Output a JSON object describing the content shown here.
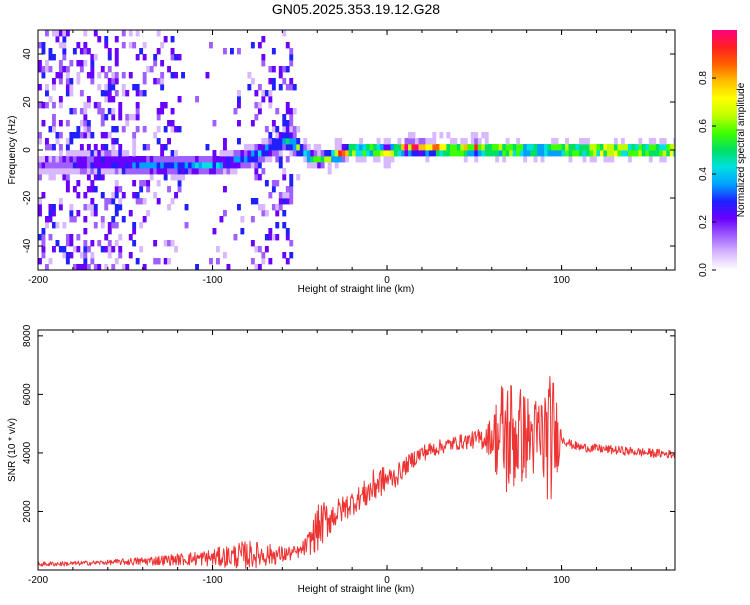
{
  "title": "GN05.2025.353.19.12.G28",
  "chart_data": [
    {
      "type": "heatmap",
      "xlabel": "Height of straight line (km)",
      "ylabel": "Frequency (Hz)",
      "xlim": [
        -200,
        165
      ],
      "ylim": [
        -50,
        50
      ],
      "xticks": [
        -200,
        -100,
        0,
        100
      ],
      "yticks": [
        -40,
        -20,
        0,
        20,
        40
      ],
      "colorbar": {
        "label": "Normalized spectral amplitude",
        "range": [
          0,
          1
        ],
        "ticks": [
          "0.0",
          "0.2",
          "0.4",
          "0.6",
          "0.8"
        ],
        "colormap": [
          "#ffffff",
          "#d8b8ff",
          "#a060ff",
          "#6a00ff",
          "#2020ff",
          "#00a0ff",
          "#00e0e0",
          "#00e060",
          "#40ff00",
          "#c0ff00",
          "#ffff00",
          "#ffc000",
          "#ff6000",
          "#ff2020",
          "#ff0080"
        ]
      },
      "ridge": {
        "x": [
          -200,
          -180,
          -160,
          -140,
          -120,
          -100,
          -90,
          -80,
          -70,
          -60,
          -55,
          -50,
          -45,
          -40,
          -30,
          -20,
          -10,
          0,
          10,
          20,
          40,
          50,
          60,
          70,
          80,
          90,
          95,
          100,
          110,
          120,
          140,
          165
        ],
        "freq": [
          -6,
          -5,
          -5,
          -6,
          -7,
          -6,
          -5,
          -3,
          0,
          4,
          3,
          0,
          -3,
          -4,
          -2,
          0,
          0,
          -1,
          1,
          1,
          0,
          1,
          0,
          0,
          0,
          0,
          1,
          0,
          0,
          0,
          0,
          0
        ],
        "peak_amplitude": [
          0.15,
          0.2,
          0.3,
          0.35,
          0.35,
          0.35,
          0.35,
          0.35,
          0.4,
          0.45,
          0.5,
          0.55,
          0.55,
          0.6,
          0.8,
          0.9,
          0.75,
          0.7,
          0.9,
          0.95,
          0.9,
          0.85,
          0.8,
          0.85,
          0.7,
          0.7,
          0.8,
          0.9,
          0.85,
          0.95,
          0.95,
          0.9
        ]
      }
    },
    {
      "type": "line",
      "xlabel": "Height of straight line (km)",
      "ylabel": "SNR (10 * v/v)",
      "xlim": [
        -200,
        165
      ],
      "ylim": [
        0,
        8200
      ],
      "xticks": [
        -200,
        -100,
        0,
        100
      ],
      "yticks": [
        2000,
        4000,
        6000,
        8000
      ],
      "series": [
        {
          "name": "SNR",
          "color": "#ee3333",
          "x": [
            -200,
            -180,
            -160,
            -140,
            -120,
            -100,
            -80,
            -60,
            -50,
            -45,
            -40,
            -35,
            -30,
            -25,
            -20,
            -15,
            -10,
            -5,
            0,
            5,
            10,
            15,
            20,
            30,
            40,
            50,
            55,
            60,
            65,
            70,
            75,
            80,
            85,
            90,
            95,
            100,
            105,
            110,
            120,
            130,
            140,
            150,
            165
          ],
          "mean": [
            200,
            220,
            260,
            300,
            360,
            420,
            520,
            520,
            620,
            900,
            1400,
            1700,
            1900,
            2100,
            2300,
            2500,
            2700,
            3000,
            3100,
            3200,
            3500,
            3800,
            4000,
            4200,
            4350,
            4450,
            4500,
            4550,
            4550,
            4550,
            4600,
            4550,
            4500,
            4500,
            4500,
            4550,
            4300,
            4200,
            4150,
            4100,
            4050,
            4000,
            3950
          ],
          "spread": [
            80,
            80,
            80,
            150,
            200,
            300,
            500,
            300,
            200,
            400,
            800,
            700,
            500,
            450,
            450,
            400,
            600,
            600,
            400,
            400,
            300,
            300,
            300,
            250,
            250,
            300,
            400,
            700,
            2000,
            2300,
            1800,
            1500,
            1400,
            2000,
            2300,
            250,
            150,
            150,
            150,
            150,
            150,
            150,
            150
          ]
        }
      ]
    }
  ]
}
